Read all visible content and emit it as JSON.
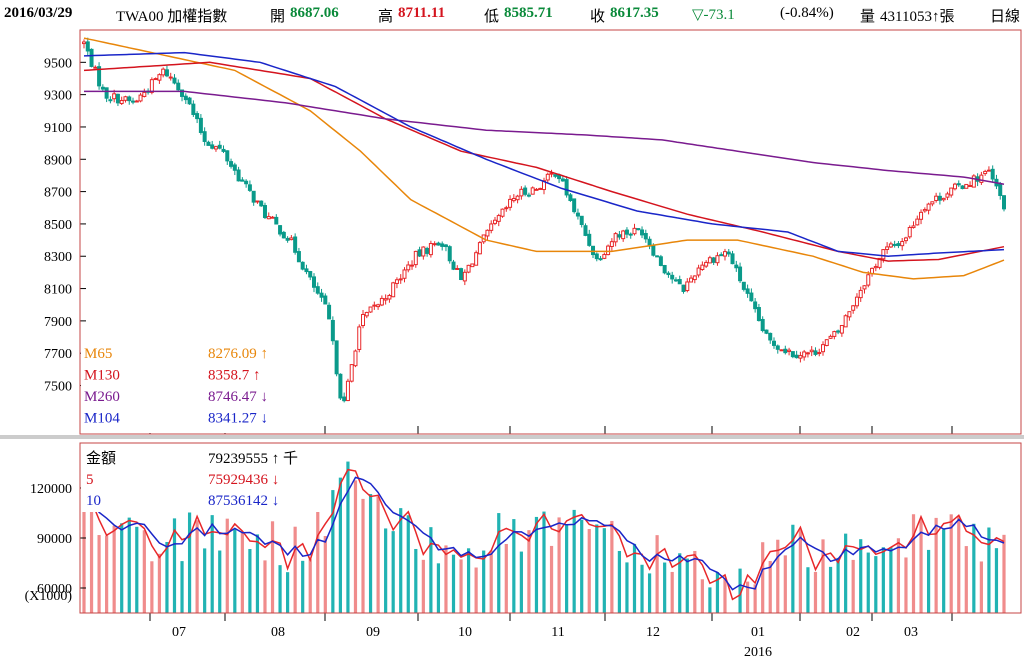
{
  "header": {
    "date": "2016/03/29",
    "symbol": "TWA00 加權指數",
    "open_label": "開",
    "open": "8687.06",
    "high_label": "高",
    "high": "8711.11",
    "low_label": "低",
    "low": "8585.71",
    "close_label": "收",
    "close": "8617.35",
    "change": "▽-73.1",
    "change_pct": "(-0.84%)",
    "volume_label": "量",
    "volume": "4311053↑張",
    "period": "日線"
  },
  "colors": {
    "up": "#e8282a",
    "down": "#0a9a8a",
    "m65": "#e8860a",
    "m130": "#d4141e",
    "m260": "#7a1b8f",
    "m104": "#1a26c8",
    "frame": "#c44444",
    "vol_up": "#f08c8c",
    "vol_down": "#21b3b3"
  },
  "price_panel": {
    "legend": [
      {
        "name": "M65",
        "value": "8276.09",
        "arrow": "↑"
      },
      {
        "name": "M130",
        "value": "8358.7",
        "arrow": "↑"
      },
      {
        "name": "M260",
        "value": "8746.47",
        "arrow": "↓"
      },
      {
        "name": "M104",
        "value": "8341.27",
        "arrow": "↓"
      }
    ]
  },
  "volume_panel": {
    "legend": [
      {
        "name": "金額",
        "value": "79239555",
        "arrow": "↑",
        "unit": "千"
      },
      {
        "name": "5",
        "value": "75929436",
        "arrow": "↓",
        "unit": ""
      },
      {
        "name": "10",
        "value": "87536142",
        "arrow": "↓",
        "unit": ""
      }
    ],
    "multiplier_label": "(X1000)"
  },
  "x_axis": {
    "month_labels": [
      "07",
      "08",
      "09",
      "10",
      "11",
      "12",
      "01",
      "02",
      "03"
    ],
    "year_label": "2016"
  },
  "chart_data": [
    {
      "type": "candlestick",
      "title": "TWA00 加權指數",
      "y_ticks": [
        7500,
        7700,
        7900,
        8100,
        8300,
        8500,
        8700,
        8900,
        9100,
        9300,
        9500
      ],
      "ylim": [
        7200,
        9700
      ],
      "approx_close_path": [
        {
          "day": 0,
          "close": 9620
        },
        {
          "day": 8,
          "close": 9300
        },
        {
          "day": 20,
          "close": 9250
        },
        {
          "day": 32,
          "close": 9450
        },
        {
          "day": 40,
          "close": 9300
        },
        {
          "day": 48,
          "close": 9020
        },
        {
          "day": 55,
          "close": 8950
        },
        {
          "day": 62,
          "close": 8780
        },
        {
          "day": 72,
          "close": 8560
        },
        {
          "day": 82,
          "close": 8400
        },
        {
          "day": 90,
          "close": 8150
        },
        {
          "day": 97,
          "close": 7950
        },
        {
          "day": 103,
          "close": 7350
        },
        {
          "day": 110,
          "close": 7900
        },
        {
          "day": 120,
          "close": 8050
        },
        {
          "day": 132,
          "close": 8300
        },
        {
          "day": 142,
          "close": 8400
        },
        {
          "day": 150,
          "close": 8150
        },
        {
          "day": 160,
          "close": 8430
        },
        {
          "day": 172,
          "close": 8680
        },
        {
          "day": 180,
          "close": 8720
        },
        {
          "day": 188,
          "close": 8830
        },
        {
          "day": 196,
          "close": 8550
        },
        {
          "day": 204,
          "close": 8280
        },
        {
          "day": 212,
          "close": 8440
        },
        {
          "day": 222,
          "close": 8460
        },
        {
          "day": 230,
          "close": 8240
        },
        {
          "day": 238,
          "close": 8090
        },
        {
          "day": 246,
          "close": 8260
        },
        {
          "day": 256,
          "close": 8330
        },
        {
          "day": 264,
          "close": 8050
        },
        {
          "day": 272,
          "close": 7780
        },
        {
          "day": 282,
          "close": 7700
        },
        {
          "day": 290,
          "close": 7700
        },
        {
          "day": 300,
          "close": 7830
        },
        {
          "day": 310,
          "close": 8130
        },
        {
          "day": 318,
          "close": 8330
        },
        {
          "day": 326,
          "close": 8400
        },
        {
          "day": 334,
          "close": 8610
        },
        {
          "day": 344,
          "close": 8700
        },
        {
          "day": 352,
          "close": 8760
        },
        {
          "day": 360,
          "close": 8820
        },
        {
          "day": 366,
          "close": 8617
        }
      ],
      "series": [
        {
          "name": "M65",
          "values": [
            [
              0,
              9650
            ],
            [
              60,
              9450
            ],
            [
              90,
              9200
            ],
            [
              110,
              8950
            ],
            [
              130,
              8650
            ],
            [
              160,
              8400
            ],
            [
              180,
              8330
            ],
            [
              210,
              8330
            ],
            [
              240,
              8400
            ],
            [
              260,
              8400
            ],
            [
              290,
              8300
            ],
            [
              310,
              8200
            ],
            [
              330,
              8160
            ],
            [
              350,
              8180
            ],
            [
              366,
              8276
            ]
          ]
        },
        {
          "name": "M130",
          "values": [
            [
              0,
              9450
            ],
            [
              50,
              9500
            ],
            [
              90,
              9400
            ],
            [
              120,
              9150
            ],
            [
              150,
              8950
            ],
            [
              180,
              8850
            ],
            [
              210,
              8700
            ],
            [
              240,
              8560
            ],
            [
              270,
              8450
            ],
            [
              300,
              8330
            ],
            [
              320,
              8270
            ],
            [
              340,
              8280
            ],
            [
              366,
              8359
            ]
          ]
        },
        {
          "name": "M260",
          "values": [
            [
              0,
              9320
            ],
            [
              40,
              9320
            ],
            [
              80,
              9250
            ],
            [
              120,
              9150
            ],
            [
              160,
              9080
            ],
            [
              200,
              9050
            ],
            [
              230,
              9020
            ],
            [
              260,
              8950
            ],
            [
              290,
              8880
            ],
            [
              320,
              8830
            ],
            [
              350,
              8790
            ],
            [
              366,
              8746
            ]
          ]
        },
        {
          "name": "M104",
          "values": [
            [
              0,
              9540
            ],
            [
              40,
              9560
            ],
            [
              70,
              9500
            ],
            [
              100,
              9350
            ],
            [
              130,
              9100
            ],
            [
              160,
              8900
            ],
            [
              190,
              8720
            ],
            [
              220,
              8580
            ],
            [
              250,
              8500
            ],
            [
              280,
              8450
            ],
            [
              300,
              8330
            ],
            [
              320,
              8300
            ],
            [
              340,
              8320
            ],
            [
              366,
              8341
            ]
          ]
        }
      ]
    },
    {
      "type": "bar",
      "title": "金額",
      "y_ticks": [
        60000,
        90000,
        120000
      ],
      "ylim": [
        45000,
        147000
      ],
      "unit": "X1000",
      "series": [
        {
          "name": "5"
        },
        {
          "name": "10"
        }
      ]
    }
  ]
}
